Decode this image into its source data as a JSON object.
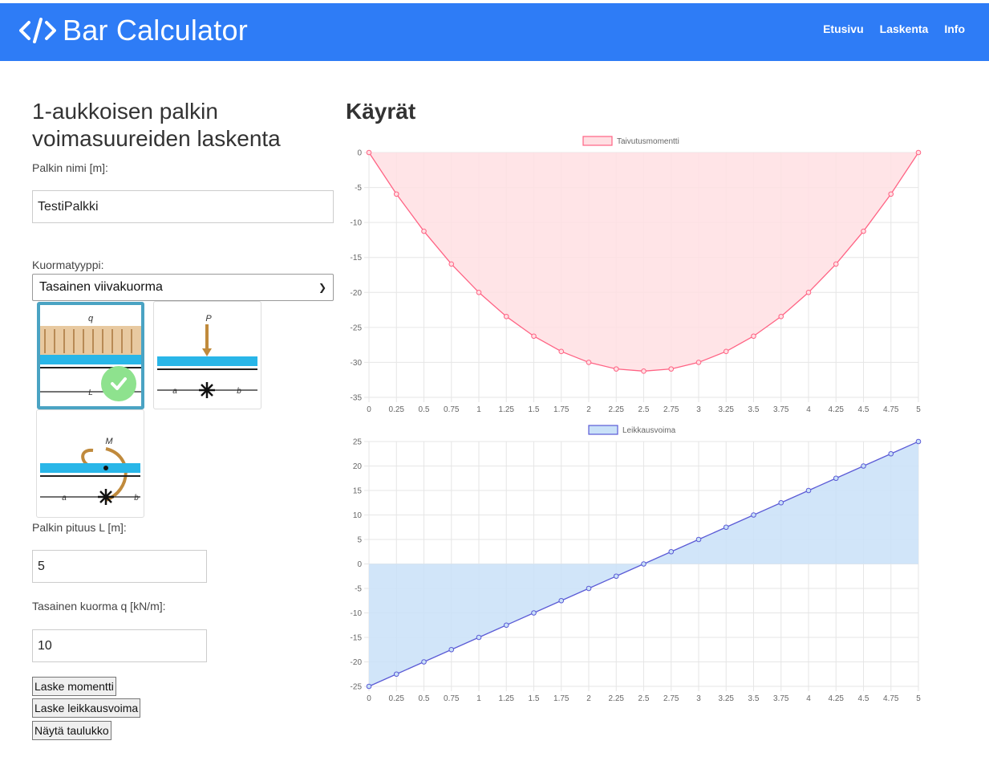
{
  "navbar": {
    "brand": "Bar Calculator",
    "links": [
      "Etusivu",
      "Laskenta",
      "Info"
    ]
  },
  "form": {
    "title": "1-aukkoisen palkin voimasuureiden laskenta",
    "name_label": "Palkin nimi [m]:",
    "name_value": "TestiPalkki",
    "load_type_label": "Kuormatyyppi:",
    "load_type_value": "Tasainen viivakuorma",
    "length_label": "Palkin pituus L [m]:",
    "length_value": "5",
    "q_label": "Tasainen kuorma q [kN/m]:",
    "q_value": "10",
    "buttons": [
      "Laske momentti",
      "Laske leikkausvoima",
      "Näytä taulukko"
    ]
  },
  "load_images": [
    {
      "name": "uniform-load",
      "labels": [
        "q",
        "L"
      ],
      "selected": true
    },
    {
      "name": "point-load",
      "labels": [
        "P",
        "a",
        "b"
      ],
      "selected": false
    },
    {
      "name": "moment-load",
      "labels": [
        "M",
        "a",
        "b"
      ],
      "selected": false
    }
  ],
  "charts_title": "Käyrät",
  "chart_data": [
    {
      "type": "area",
      "series": [
        {
          "name": "Taivutusmomentti",
          "color": "#ff6384",
          "fill": "#ffdfe3"
        }
      ],
      "x": [
        0,
        0.25,
        0.5,
        0.75,
        1,
        1.25,
        1.5,
        1.75,
        2,
        2.25,
        2.5,
        2.75,
        3,
        3.25,
        3.5,
        3.75,
        4,
        4.25,
        4.5,
        4.75,
        5
      ],
      "x_labels": [
        "0",
        "0.25",
        "0.5",
        "0.75",
        "1",
        "1.25",
        "1.5",
        "1.75",
        "2",
        "2.25",
        "2.5",
        "2.75",
        "3",
        "3.25",
        "3.5",
        "3.75",
        "4",
        "4.25",
        "4.5",
        "4.75",
        "5"
      ],
      "values": [
        0,
        -5.94,
        -11.25,
        -15.94,
        -20,
        -23.44,
        -26.25,
        -28.44,
        -30,
        -30.94,
        -31.25,
        -30.94,
        -30,
        -28.44,
        -26.25,
        -23.44,
        -20,
        -15.94,
        -11.25,
        -5.94,
        0
      ],
      "ylim": [
        -35,
        0
      ],
      "y_ticks": [
        0,
        -5,
        -10,
        -15,
        -20,
        -25,
        -30,
        -35
      ],
      "grid": true,
      "legend": "top"
    },
    {
      "type": "area",
      "series": [
        {
          "name": "Leikkausvoima",
          "color": "#5b5bd6",
          "fill": "#c9e1f8"
        }
      ],
      "x": [
        0,
        0.25,
        0.5,
        0.75,
        1,
        1.25,
        1.5,
        1.75,
        2,
        2.25,
        2.5,
        2.75,
        3,
        3.25,
        3.5,
        3.75,
        4,
        4.25,
        4.5,
        4.75,
        5
      ],
      "x_labels": [
        "0",
        "0.25",
        "0.5",
        "0.75",
        "1",
        "1.25",
        "1.5",
        "1.75",
        "2",
        "2.25",
        "2.5",
        "2.75",
        "3",
        "3.25",
        "3.5",
        "3.75",
        "4",
        "4.25",
        "4.5",
        "4.75",
        "5"
      ],
      "values": [
        -25,
        -22.5,
        -20,
        -17.5,
        -15,
        -12.5,
        -10,
        -7.5,
        -5,
        -2.5,
        0,
        2.5,
        5,
        7.5,
        10,
        12.5,
        15,
        17.5,
        20,
        22.5,
        25
      ],
      "ylim": [
        -25,
        25
      ],
      "y_ticks": [
        25,
        20,
        15,
        10,
        5,
        0,
        -5,
        -10,
        -15,
        -20,
        -25
      ],
      "grid": true,
      "legend": "top"
    }
  ]
}
